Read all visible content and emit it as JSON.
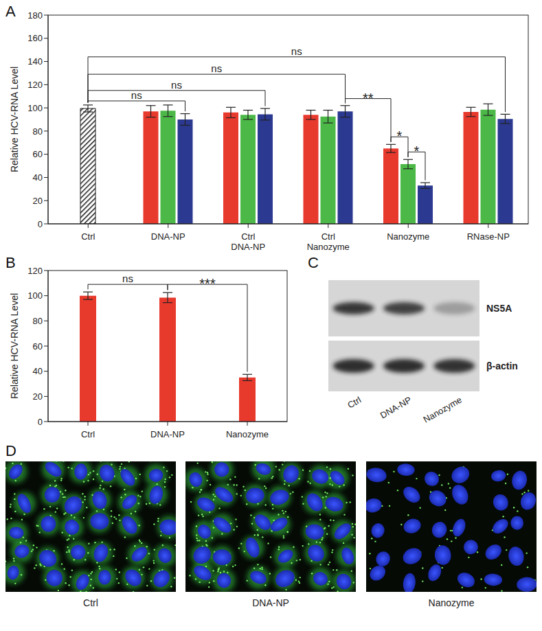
{
  "panel_labels": [
    "A",
    "B",
    "C",
    "D"
  ],
  "chart_data": [
    {
      "type": "bar",
      "y_label": "Relative HCV-RNA Level",
      "categories": [
        "Ctrl",
        "DNA-NP",
        "Ctrl\nDNA-NP",
        "Ctrl\nNanozyme",
        "Nanozyme",
        "RNase-NP"
      ],
      "series": [
        {
          "color": "#1a1a1a",
          "values": [
            99.5,
            null,
            null,
            null,
            null,
            null
          ],
          "errors": [
            3,
            null,
            null,
            null,
            null,
            null
          ]
        },
        {
          "color": "#e8392d",
          "values": [
            null,
            97,
            96,
            94,
            65,
            96.5
          ],
          "errors": [
            null,
            5,
            4.5,
            4,
            3.5,
            4
          ]
        },
        {
          "color": "#4cb848",
          "values": [
            null,
            97.5,
            94,
            92.5,
            51.5,
            98.5
          ],
          "errors": [
            null,
            5,
            4,
            5.5,
            4,
            5
          ]
        },
        {
          "color": "#2b3990",
          "values": [
            null,
            90,
            94.5,
            97,
            33,
            90.5
          ],
          "errors": [
            null,
            5,
            5,
            5,
            2.5,
            4
          ]
        }
      ],
      "ylim": [
        0,
        180
      ],
      "yticks": [
        0,
        20,
        40,
        60,
        80,
        100,
        120,
        140,
        160,
        180
      ],
      "annotations": [
        {
          "text": "ns",
          "from": [
            "Ctrl",
            0
          ],
          "to": [
            "DNA-NP",
            3
          ],
          "y": 106
        },
        {
          "text": "ns",
          "from": [
            "Ctrl",
            0
          ],
          "to": [
            "Ctrl\nDNA-NP",
            3
          ],
          "y": 115
        },
        {
          "text": "ns",
          "from": [
            "Ctrl",
            0
          ],
          "to": [
            "Ctrl\nNanozyme",
            3
          ],
          "y": 129
        },
        {
          "text": "ns",
          "from": [
            "Ctrl",
            0
          ],
          "to": [
            "RNase-NP",
            3
          ],
          "y": 144
        },
        {
          "text": "**",
          "from": [
            "Ctrl\nNanozyme",
            3
          ],
          "to": [
            "Nanozyme",
            1
          ],
          "y": 108
        },
        {
          "text": "*",
          "from": [
            "Nanozyme",
            1
          ],
          "to": [
            "Nanozyme",
            2
          ],
          "y": 75
        },
        {
          "text": "*",
          "from": [
            "Nanozyme",
            2
          ],
          "to": [
            "Nanozyme",
            3
          ],
          "y": 62
        }
      ]
    },
    {
      "type": "bar",
      "y_label": "Relative HCV-RNA Level",
      "categories": [
        "Ctrl",
        "DNA-NP",
        "Nanozyme"
      ],
      "series": [
        {
          "color": "#e8392d",
          "values": [
            100,
            98.5,
            35
          ],
          "errors": [
            3,
            4,
            2.5
          ]
        }
      ],
      "ylim": [
        0,
        120
      ],
      "yticks": [
        0,
        20,
        40,
        60,
        80,
        100,
        120
      ],
      "annotations": [
        {
          "text": "ns",
          "from": [
            "Ctrl",
            0
          ],
          "to": [
            "DNA-NP",
            0
          ],
          "y": 109
        },
        {
          "text": "***",
          "from": [
            "DNA-NP",
            0
          ],
          "to": [
            "Nanozyme",
            0
          ],
          "y": 109
        }
      ]
    }
  ],
  "blot": {
    "bands": [
      "NS5A",
      "β-actin"
    ],
    "lanes": [
      "Ctrl",
      "DNA-NP",
      "Nanozyme"
    ]
  },
  "images": {
    "labels": [
      "Ctrl",
      "DNA-NP",
      "Nanozyme"
    ]
  }
}
